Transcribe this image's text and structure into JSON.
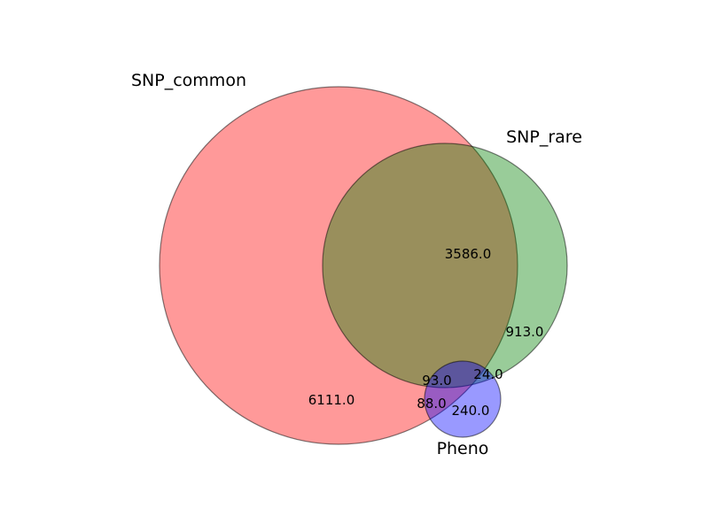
{
  "chart_data": {
    "type": "venn",
    "sets": [
      {
        "name": "SNP_common",
        "color": "#ff0000"
      },
      {
        "name": "SNP_rare",
        "color": "#008000"
      },
      {
        "name": "Pheno",
        "color": "#0000ff"
      }
    ],
    "regions": [
      {
        "sets": [
          "SNP_common"
        ],
        "value": "6111.0"
      },
      {
        "sets": [
          "SNP_common",
          "SNP_rare"
        ],
        "value": "3586.0"
      },
      {
        "sets": [
          "SNP_rare"
        ],
        "value": "913.0"
      },
      {
        "sets": [
          "SNP_rare",
          "Pheno"
        ],
        "value": "24.0"
      },
      {
        "sets": [
          "SNP_common",
          "SNP_rare",
          "Pheno"
        ],
        "value": "93.0"
      },
      {
        "sets": [
          "SNP_common",
          "Pheno"
        ],
        "value": "88.0"
      },
      {
        "sets": [
          "Pheno"
        ],
        "value": "240.0"
      }
    ]
  }
}
